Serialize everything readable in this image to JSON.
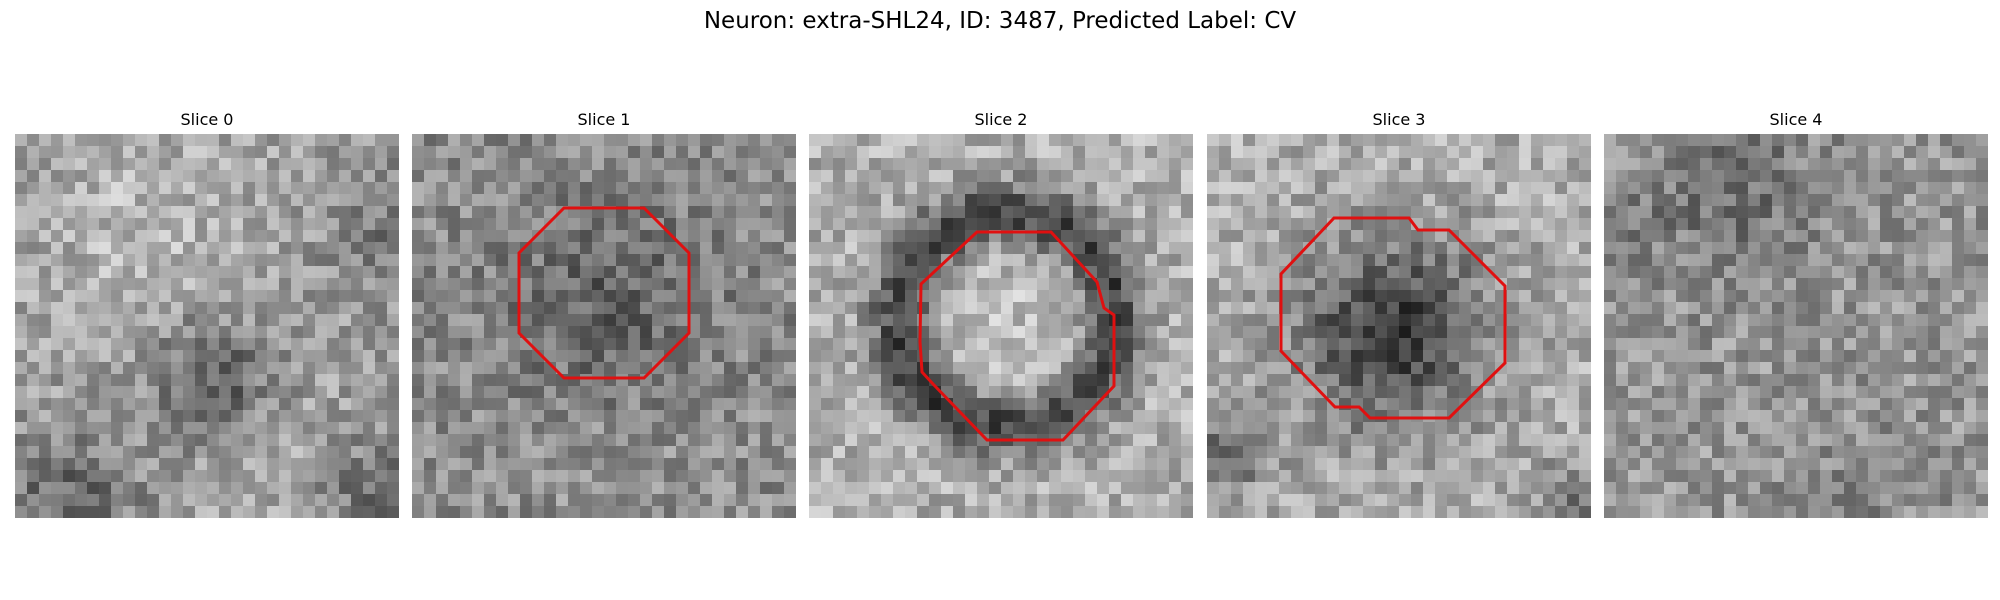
{
  "figure": {
    "title": "Neuron: extra-SHL24, ID: 3487, Predicted Label: CV"
  },
  "outline_color": "#e01010",
  "slices": [
    {
      "title": "Slice 0",
      "has_outline": false,
      "pattern": "blobs-dark-lower-center"
    },
    {
      "title": "Slice 1",
      "has_outline": true,
      "pattern": "noisy-dark-center"
    },
    {
      "title": "Slice 2",
      "has_outline": true,
      "pattern": "dark-ring-bright-center"
    },
    {
      "title": "Slice 3",
      "has_outline": true,
      "pattern": "dark-center-blob"
    },
    {
      "title": "Slice 4",
      "has_outline": false,
      "pattern": "noisy-uniform"
    }
  ]
}
